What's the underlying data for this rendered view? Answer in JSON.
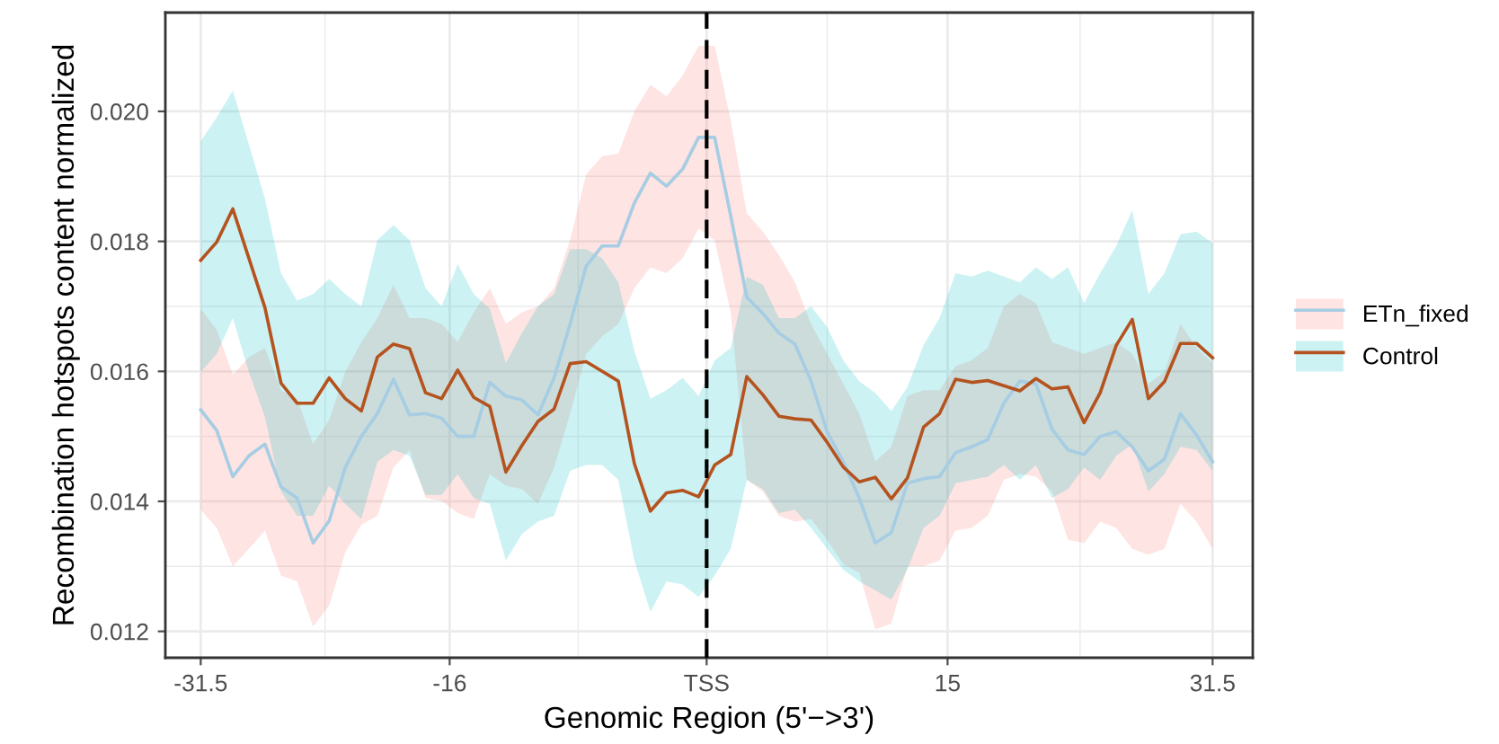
{
  "chart_data": {
    "type": "line",
    "xlabel": "Genomic Region (5'−>3')",
    "ylabel": "Recombination hotspots content normalized",
    "x": [
      -31.5,
      -30.5,
      -29.5,
      -28.5,
      -27.5,
      -26.5,
      -25.5,
      -24.5,
      -23.5,
      -22.5,
      -21.5,
      -20.5,
      -19.5,
      -18.5,
      -17.5,
      -16.5,
      -15.5,
      -14.5,
      -13.5,
      -12.5,
      -11.5,
      -10.5,
      -9.5,
      -8.5,
      -7.5,
      -6.5,
      -5.5,
      -4.5,
      -3.5,
      -2.5,
      -1.5,
      -0.5,
      0.5,
      1.5,
      2.5,
      3.5,
      4.5,
      5.5,
      6.5,
      7.5,
      8.5,
      9.5,
      10.5,
      11.5,
      12.5,
      13.5,
      14.5,
      15.5,
      16.5,
      17.5,
      18.5,
      19.5,
      20.5,
      21.5,
      22.5,
      23.5,
      24.5,
      25.5,
      26.5,
      27.5,
      28.5,
      29.5,
      30.5,
      31.5
    ],
    "series": [
      {
        "name": "ETn_fixed",
        "color": "#a6cde3",
        "values": [
          0.01541,
          0.01509,
          0.01438,
          0.0147,
          0.01488,
          0.01422,
          0.01405,
          0.01336,
          0.0137,
          0.01452,
          0.015,
          0.01535,
          0.01588,
          0.01533,
          0.01535,
          0.01528,
          0.015,
          0.015,
          0.01583,
          0.01562,
          0.01556,
          0.01533,
          0.0159,
          0.01673,
          0.01762,
          0.01793,
          0.01793,
          0.01859,
          0.01905,
          0.01885,
          0.01911,
          0.0196,
          0.0196,
          0.01839,
          0.01714,
          0.01689,
          0.01659,
          0.01642,
          0.01585,
          0.01507,
          0.01461,
          0.01405,
          0.01336,
          0.01352,
          0.01428,
          0.01435,
          0.01438,
          0.01475,
          0.01484,
          0.01495,
          0.01551,
          0.01585,
          0.01581,
          0.01511,
          0.01479,
          0.01472,
          0.015,
          0.01507,
          0.01484,
          0.01447,
          0.01465,
          0.01535,
          0.01502,
          0.01461
        ],
        "lower": [
          0.01387,
          0.01359,
          0.013,
          0.01327,
          0.01355,
          0.01286,
          0.01277,
          0.01207,
          0.0124,
          0.01322,
          0.01364,
          0.01378,
          0.01452,
          0.01479,
          0.01405,
          0.01401,
          0.01382,
          0.01373,
          0.01442,
          0.01424,
          0.01419,
          0.01396,
          0.01452,
          0.01535,
          0.01627,
          0.01654,
          0.01673,
          0.01728,
          0.0176,
          0.01751,
          0.01774,
          0.0182,
          0.01802,
          0.01691,
          0.01433,
          0.01415,
          0.01378,
          0.01369,
          0.01373,
          0.01341,
          0.01304,
          0.0129,
          0.01203,
          0.01212,
          0.013,
          0.013,
          0.01309,
          0.01355,
          0.01359,
          0.01378,
          0.01433,
          0.01442,
          0.01438,
          0.01415,
          0.01341,
          0.01336,
          0.01369,
          0.01359,
          0.01327,
          0.01318,
          0.01327,
          0.01396,
          0.01369,
          0.01327
        ],
        "upper": [
          0.01696,
          0.01664,
          0.01595,
          0.01622,
          0.01636,
          0.01571,
          0.01558,
          0.01488,
          0.01525,
          0.01599,
          0.01645,
          0.01682,
          0.01733,
          0.01682,
          0.01682,
          0.01673,
          0.01645,
          0.01691,
          0.01728,
          0.01673,
          0.01691,
          0.017,
          0.01728,
          0.01802,
          0.01903,
          0.01931,
          0.01935,
          0.02,
          0.02041,
          0.02023,
          0.02055,
          0.02101,
          0.02101,
          0.01986,
          0.01843,
          0.01815,
          0.01779,
          0.01737,
          0.01673,
          0.01627,
          0.01581,
          0.01535,
          0.01461,
          0.01484,
          0.01562,
          0.01571,
          0.01571,
          0.01608,
          0.01617,
          0.01636,
          0.017,
          0.01719,
          0.01705,
          0.01645,
          0.01636,
          0.01627,
          0.01636,
          0.01645,
          0.01627,
          0.01581,
          0.01599,
          0.01673,
          0.01636,
          0.01613
        ]
      },
      {
        "name": "Control",
        "color": "#b5531f",
        "values": [
          0.01771,
          0.01799,
          0.0185,
          0.01774,
          0.01698,
          0.01582,
          0.01551,
          0.01551,
          0.0159,
          0.01558,
          0.01539,
          0.01622,
          0.01642,
          0.01635,
          0.01567,
          0.01558,
          0.01602,
          0.0156,
          0.01546,
          0.01445,
          0.01486,
          0.01523,
          0.01542,
          0.01612,
          0.01615,
          0.016,
          0.01585,
          0.01458,
          0.01385,
          0.01413,
          0.01417,
          0.01407,
          0.01456,
          0.01472,
          0.01592,
          0.01564,
          0.01531,
          0.01527,
          0.01525,
          0.01491,
          0.01453,
          0.0143,
          0.01437,
          0.01404,
          0.01436,
          0.01514,
          0.01535,
          0.01588,
          0.01583,
          0.01586,
          0.01578,
          0.0157,
          0.01589,
          0.01573,
          0.01576,
          0.01521,
          0.01567,
          0.0164,
          0.0168,
          0.01558,
          0.01584,
          0.01643,
          0.01643,
          0.01621
        ],
        "lower": [
          0.01599,
          0.01627,
          0.01682,
          0.01599,
          0.0153,
          0.01415,
          0.01378,
          0.01378,
          0.01424,
          0.01396,
          0.01373,
          0.01461,
          0.01479,
          0.0147,
          0.0141,
          0.0141,
          0.01442,
          0.01405,
          0.01396,
          0.01309,
          0.0135,
          0.01369,
          0.01378,
          0.01447,
          0.01456,
          0.01456,
          0.01433,
          0.01309,
          0.0123,
          0.01277,
          0.01272,
          0.01253,
          0.01286,
          0.01327,
          0.01433,
          0.01419,
          0.01382,
          0.01387,
          0.01359,
          0.01327,
          0.01295,
          0.01277,
          0.01263,
          0.01249,
          0.01295,
          0.01359,
          0.01378,
          0.01428,
          0.01433,
          0.01438,
          0.01456,
          0.01433,
          0.01456,
          0.01405,
          0.01419,
          0.01452,
          0.01433,
          0.0147,
          0.01488,
          0.01415,
          0.01442,
          0.01484,
          0.01479,
          0.01447
        ],
        "upper": [
          0.01954,
          0.01991,
          0.02032,
          0.01949,
          0.01866,
          0.01751,
          0.01709,
          0.01719,
          0.01742,
          0.01719,
          0.017,
          0.01802,
          0.01825,
          0.01802,
          0.01728,
          0.017,
          0.01765,
          0.01719,
          0.01696,
          0.01613,
          0.01659,
          0.017,
          0.01719,
          0.01788,
          0.01788,
          0.01774,
          0.01737,
          0.01631,
          0.01558,
          0.01571,
          0.0159,
          0.01562,
          0.01617,
          0.01636,
          0.01746,
          0.01733,
          0.01682,
          0.01682,
          0.017,
          0.01668,
          0.01617,
          0.01585,
          0.01567,
          0.01539,
          0.01576,
          0.0164,
          0.01682,
          0.01751,
          0.01746,
          0.01755,
          0.01746,
          0.01737,
          0.0176,
          0.01742,
          0.0176,
          0.01705,
          0.01751,
          0.01793,
          0.01848,
          0.01719,
          0.01751,
          0.01811,
          0.01815,
          0.01797
        ]
      }
    ],
    "xlim": [
      -33.7,
      34.0
    ],
    "ylim": [
      0.011594,
      0.02152
    ],
    "xticks": [
      -31.5,
      -16,
      {
        "value": 0,
        "label": "TSS"
      },
      15,
      31.5
    ],
    "yticks": [
      0.012,
      0.014,
      0.016,
      0.018,
      {
        "value": 0.02,
        "label": "0.020"
      }
    ],
    "ref_lines": [
      {
        "axis": "x",
        "value": 0,
        "color": "#000000",
        "line_style": "dashed"
      }
    ],
    "grid": true,
    "legend": "right",
    "line_style": "solid",
    "marker": "none"
  }
}
